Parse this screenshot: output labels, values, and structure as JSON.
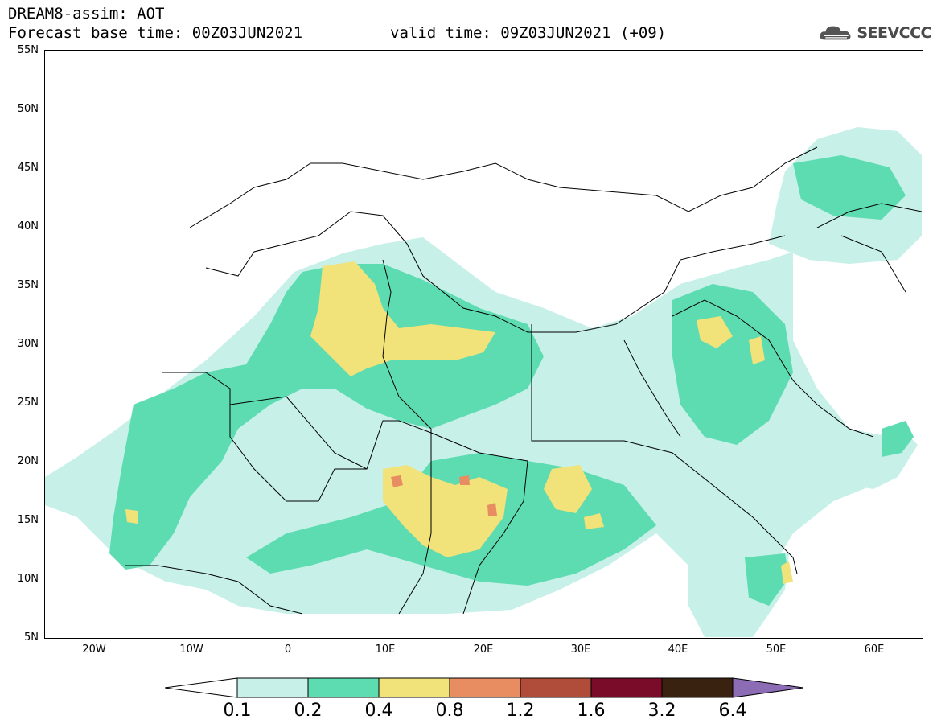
{
  "header": {
    "title_line_1": "DREAM8-assim: AOT",
    "title_line_2": "Forecast base time: 00Z03JUN2021",
    "valid_time": "valid time: 09Z03JUN2021 (+09)"
  },
  "logo": {
    "text": "SEEVCCC",
    "icon": "cloud-logo-icon"
  },
  "map": {
    "lat_labels": [
      "55N",
      "50N",
      "45N",
      "40N",
      "35N",
      "30N",
      "25N",
      "20N",
      "15N",
      "10N",
      "5N"
    ],
    "lon_labels": [
      "20W",
      "10W",
      "0",
      "10E",
      "20E",
      "30E",
      "40E",
      "50E",
      "60E"
    ]
  },
  "legend": {
    "levels": [
      "0.1",
      "0.2",
      "0.4",
      "0.8",
      "1.2",
      "1.6",
      "3.2",
      "6.4"
    ],
    "colors": [
      "#c6f0e8",
      "#5cdcb0",
      "#f2e27a",
      "#e88c62",
      "#b04c3a",
      "#7a0c2a",
      "#3a2210",
      "#8c6cb4"
    ]
  }
}
